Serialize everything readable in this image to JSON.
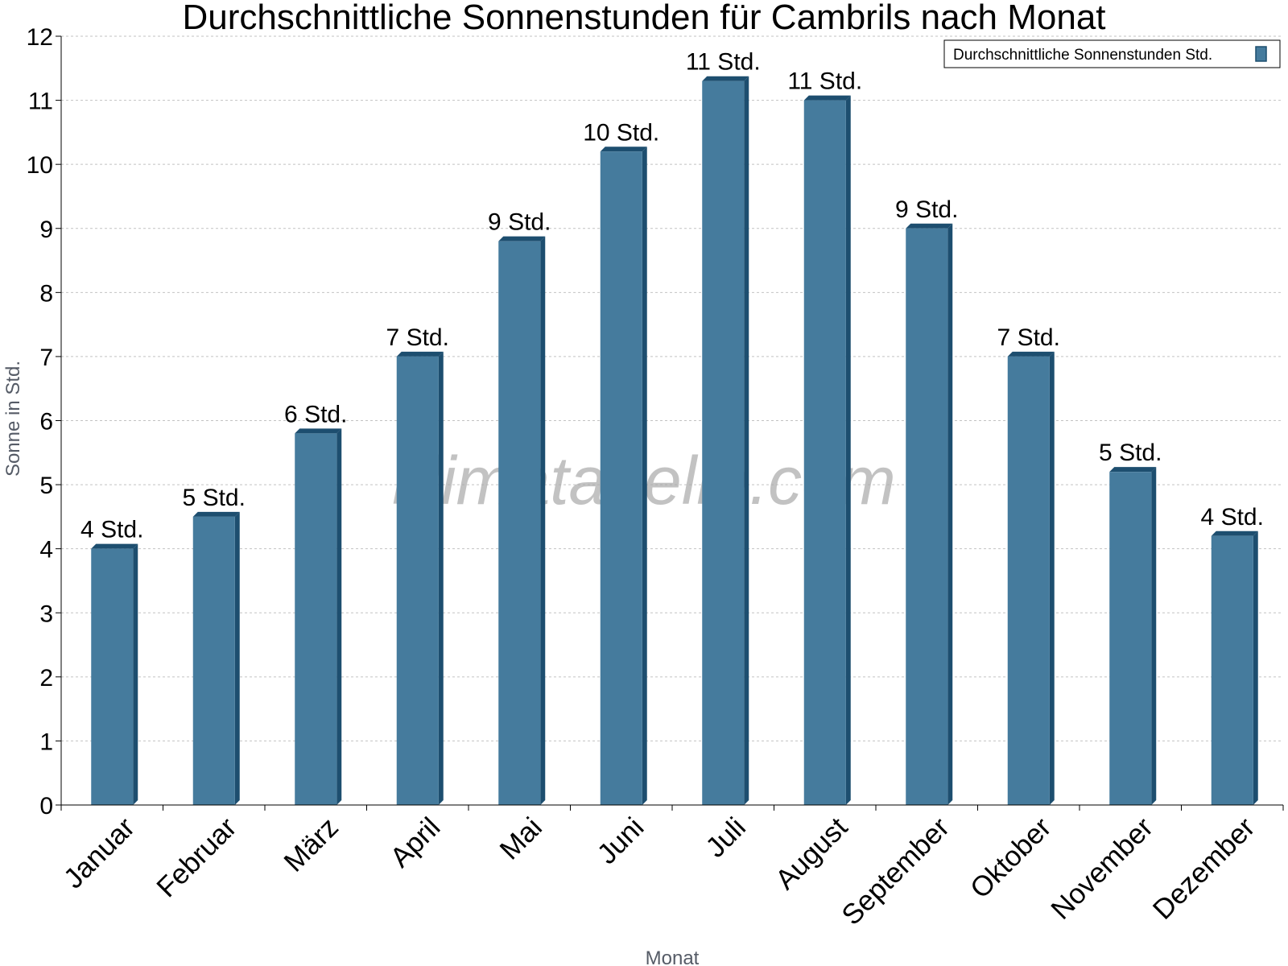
{
  "chart_data": {
    "type": "bar",
    "title": "Durchschnittliche Sonnenstunden für Cambrils nach Monat",
    "xlabel": "Monat",
    "ylabel": "Sonne in Std.",
    "ylim": [
      0,
      12
    ],
    "yticks": [
      "0",
      "1",
      "2",
      "3",
      "4",
      "5",
      "6",
      "7",
      "8",
      "9",
      "10",
      "11",
      "12"
    ],
    "grid": true,
    "legend_position": "top-right",
    "categories": [
      "Januar",
      "Februar",
      "März",
      "April",
      "Mai",
      "Juni",
      "Juli",
      "August",
      "September",
      "Oktober",
      "November",
      "Dezember"
    ],
    "series": [
      {
        "name": "Durchschnittliche Sonnenstunden Std.",
        "values": [
          4.0,
          4.5,
          5.8,
          7.0,
          8.8,
          10.2,
          11.3,
          11.0,
          9.0,
          7.0,
          5.2,
          4.2
        ],
        "labels": [
          "4 Std.",
          "5 Std.",
          "6 Std.",
          "7 Std.",
          "9 Std.",
          "10 Std.",
          "11 Std.",
          "11 Std.",
          "9 Std.",
          "7 Std.",
          "5 Std.",
          "4 Std."
        ],
        "color": "#457b9d",
        "shade_color": "#1d4e6f"
      }
    ],
    "watermark": "klimatabelle.com"
  }
}
